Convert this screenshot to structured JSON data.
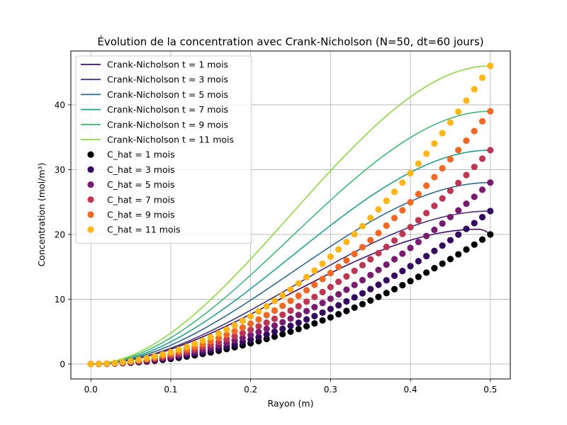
{
  "chart_data": {
    "type": "line",
    "title": "Évolution de la concentration avec Crank-Nicholson (N=50, dt=60 jours)",
    "xlabel": "Rayon (m)",
    "ylabel": "Concentration (mol/m³)",
    "xlim": [
      -0.025,
      0.525
    ],
    "ylim": [
      -2.3,
      48.3
    ],
    "xticks": [
      0.0,
      0.1,
      0.2,
      0.3,
      0.4,
      0.5
    ],
    "xtick_labels": [
      "0.0",
      "0.1",
      "0.2",
      "0.3",
      "0.4",
      "0.5"
    ],
    "yticks": [
      0,
      10,
      20,
      30,
      40
    ],
    "ytick_labels": [
      "0",
      "10",
      "20",
      "30",
      "40"
    ],
    "grid": true,
    "legend_position": "top-left",
    "line_series": [
      {
        "name": "Crank-Nicholson t = 1 mois",
        "color": "#3b0f70",
        "end_value": 20.0,
        "peak": 20.8,
        "peak_x": 0.485
      },
      {
        "name": "Crank-Nicholson t = 3 mois",
        "color": "#46337e",
        "end_value": 23.6,
        "peak": 23.6,
        "peak_x": 0.5
      },
      {
        "name": "Crank-Nicholson t = 5 mois",
        "color": "#2b6a8e",
        "end_value": 28.0,
        "peak": 28.0,
        "peak_x": 0.5
      },
      {
        "name": "Crank-Nicholson t = 7 mois",
        "color": "#21a08c",
        "end_value": 33.0,
        "peak": 33.0,
        "peak_x": 0.5
      },
      {
        "name": "Crank-Nicholson t = 9 mois",
        "color": "#3db978",
        "end_value": 39.0,
        "peak": 39.0,
        "peak_x": 0.5
      },
      {
        "name": "Crank-Nicholson t = 11 mois",
        "color": "#8fd744",
        "end_value": 46.0,
        "peak": 46.0,
        "peak_x": 0.5
      }
    ],
    "scatter_series": [
      {
        "name": "C_hat = 1 mois",
        "color": "#000004",
        "end_value": 20.0
      },
      {
        "name": "C_hat = 3 mois",
        "color": "#320a5e",
        "end_value": 23.6
      },
      {
        "name": "C_hat = 5 mois",
        "color": "#781c6d",
        "end_value": 28.0
      },
      {
        "name": "C_hat = 7 mois",
        "color": "#bc3754",
        "end_value": 33.0
      },
      {
        "name": "C_hat = 9 mois",
        "color": "#ed6925",
        "end_value": 39.0
      },
      {
        "name": "C_hat = 11 mois",
        "color": "#fbb61a",
        "end_value": 46.0
      }
    ],
    "r_max": 0.5,
    "scatter_points": 51
  }
}
